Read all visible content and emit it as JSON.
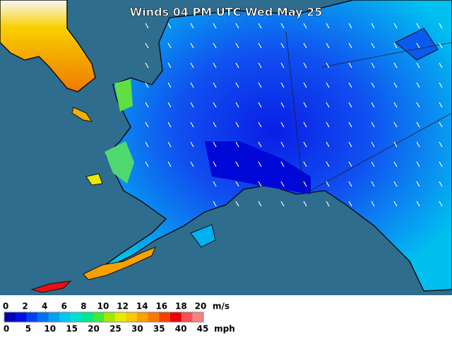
{
  "title": "Winds 04 PM UTC Wed May 25",
  "legend": {
    "colors": [
      "#0000b4",
      "#0010e0",
      "#0040f0",
      "#0070f0",
      "#00a0f0",
      "#00c8f0",
      "#00e0d0",
      "#00e890",
      "#40e840",
      "#a0e800",
      "#e8e800",
      "#f8c800",
      "#f8a000",
      "#f87800",
      "#f84000",
      "#e80000",
      "#f85050",
      "#f88080"
    ],
    "ms_labels": [
      0,
      2,
      4,
      6,
      8,
      10,
      12,
      14,
      16,
      18,
      20
    ],
    "ms_unit": "m/s",
    "mph_labels": [
      0,
      5,
      10,
      15,
      20,
      25,
      30,
      35,
      40,
      45
    ],
    "mph_unit": "mph"
  }
}
